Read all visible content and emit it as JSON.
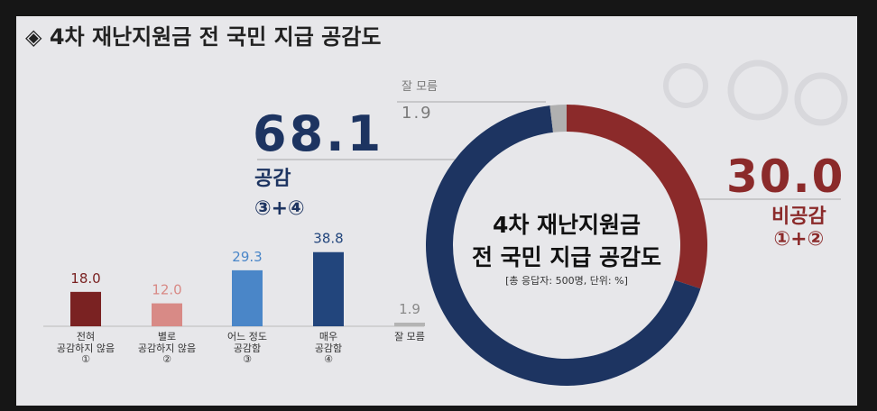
{
  "title": "◈ 4차 재난지원금 전 국민 지급 공감도",
  "chart_data": [
    {
      "type": "bar",
      "categories": [
        "전혀\n공감하지 않음\n①",
        "별로\n공감하지 않음\n②",
        "어느 정도\n공감함\n③",
        "매우\n공감함\n④",
        "잘 모름"
      ],
      "values": [
        18.0,
        12.0,
        29.3,
        38.8,
        1.9
      ],
      "value_labels": [
        "18.0",
        "12.0",
        "29.3",
        "38.8",
        "1.9"
      ],
      "colors": [
        "#7a2222",
        "#d88a86",
        "#4a86c8",
        "#22457c",
        "#b4b4b4"
      ],
      "label_colors": [
        "#7a2222",
        "#d88a86",
        "#4a86c8",
        "#22457c",
        "#8a8a8a"
      ]
    },
    {
      "type": "donut",
      "center_title": "4차 재난지원금\n전 국민 지급 공감도",
      "note": "[총 응답자: 500명, 단위: %]",
      "categories": [
        "비공감\n①+②",
        "공감\n③+④",
        "잘 모름"
      ],
      "values": [
        30.0,
        68.1,
        1.9
      ],
      "value_labels": [
        "30.0",
        "68.1",
        "1.9"
      ],
      "colors": [
        "#8b2a2a",
        "#1d3461",
        "#b0b0b0"
      ]
    }
  ]
}
